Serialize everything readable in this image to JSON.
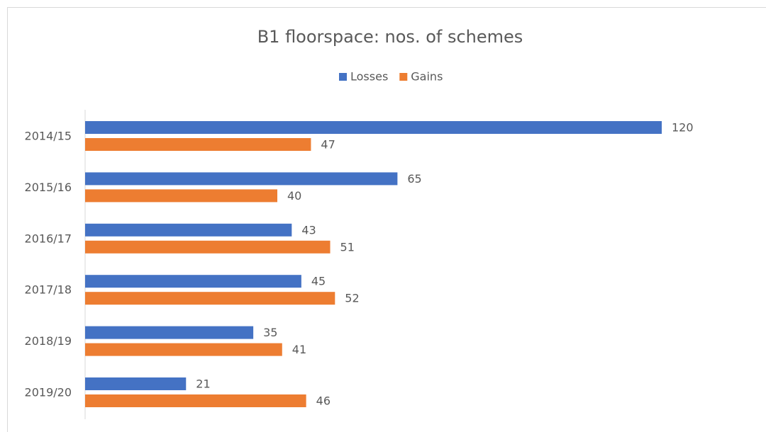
{
  "chart_data": {
    "type": "hbar",
    "title": "B1 floorspace: nos. of schemes",
    "categories": [
      "2014/15",
      "2015/16",
      "2016/17",
      "2017/18",
      "2018/19",
      "2019/20"
    ],
    "series": [
      {
        "name": "Losses",
        "color": "#4472c4",
        "values": [
          120,
          65,
          43,
          45,
          35,
          21
        ]
      },
      {
        "name": "Gains",
        "color": "#ed7d31",
        "values": [
          47,
          40,
          51,
          52,
          41,
          46
        ]
      }
    ],
    "legend": "top"
  }
}
